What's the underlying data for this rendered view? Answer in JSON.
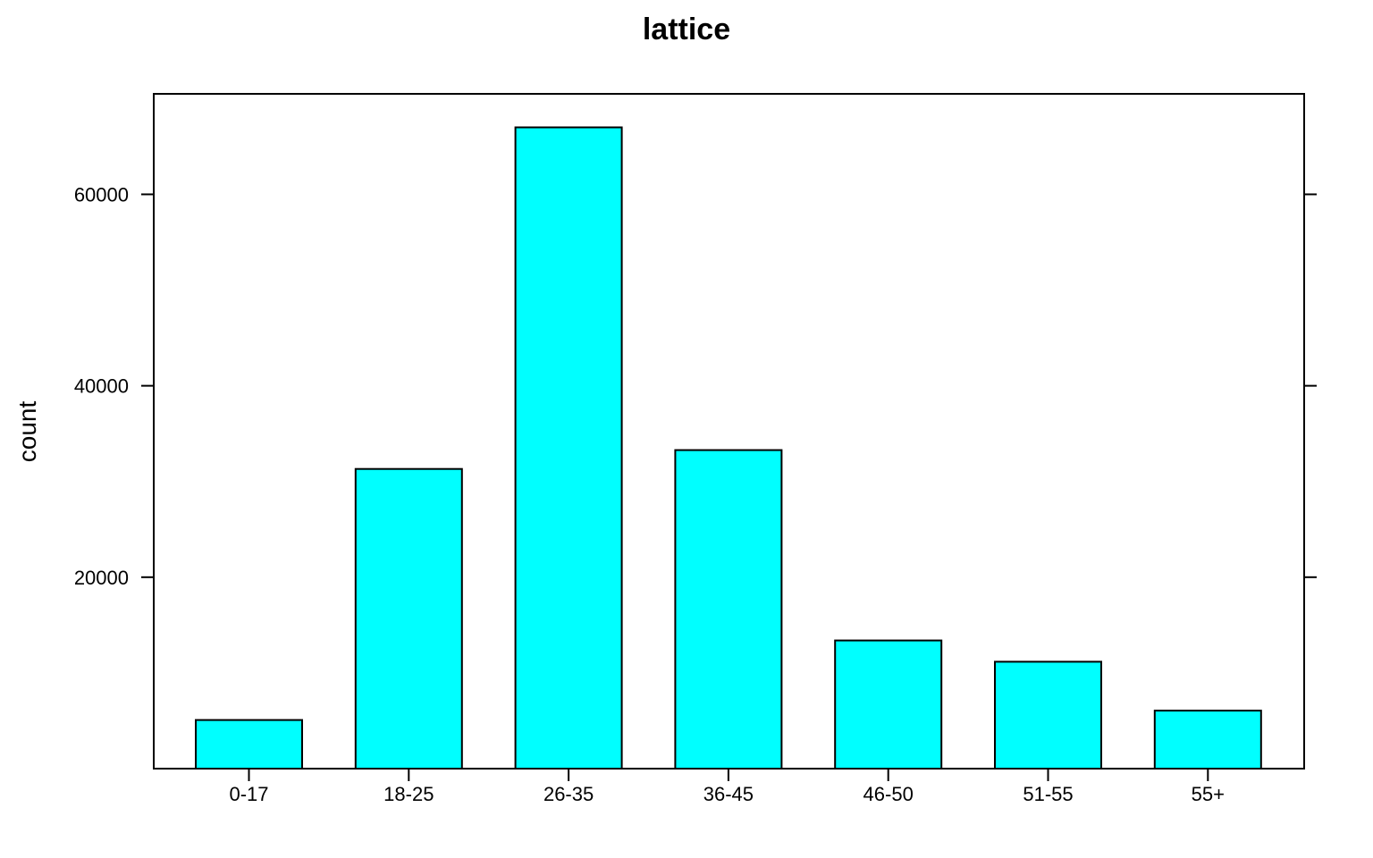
{
  "chart_data": {
    "type": "bar",
    "title": "lattice",
    "xlabel": "",
    "ylabel": "count",
    "categories": [
      "0-17",
      "18-25",
      "26-35",
      "36-45",
      "46-50",
      "51-55",
      "55+"
    ],
    "values": [
      5083,
      31306,
      67000,
      33282,
      13386,
      11170,
      6062
    ],
    "ylim": [
      0,
      70500
    ],
    "yticks": [
      20000,
      40000,
      60000
    ],
    "bar_color": "#00FFFF",
    "grid": false,
    "legend": "none"
  }
}
